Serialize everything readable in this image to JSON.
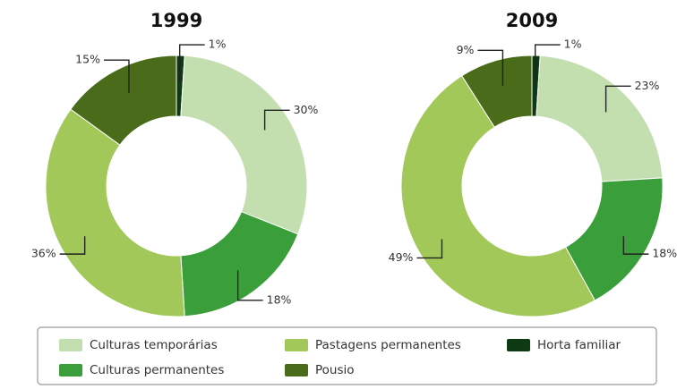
{
  "chart_data": [
    {
      "type": "pie",
      "title": "1999",
      "categories": [
        "Horta familiar",
        "Culturas temporárias",
        "Culturas permanentes",
        "Pastagens permanentes",
        "Pousio"
      ],
      "values": [
        1,
        30,
        18,
        36,
        15
      ],
      "value_labels": [
        "1%",
        "30%",
        "18%",
        "36%",
        "15%"
      ],
      "colors": [
        "#0d3a12",
        "#c3dfb0",
        "#3a9e3a",
        "#a3c85a",
        "#4a6b1a"
      ]
    },
    {
      "type": "pie",
      "title": "2009",
      "categories": [
        "Horta familiar",
        "Culturas temporárias",
        "Culturas permanentes",
        "Pastagens permanentes",
        "Pousio"
      ],
      "values": [
        1,
        23,
        18,
        49,
        9
      ],
      "value_labels": [
        "1%",
        "23%",
        "18%",
        "49%",
        "9%"
      ],
      "colors": [
        "#0d3a12",
        "#c3dfb0",
        "#3a9e3a",
        "#a3c85a",
        "#4a6b1a"
      ]
    }
  ]
}
